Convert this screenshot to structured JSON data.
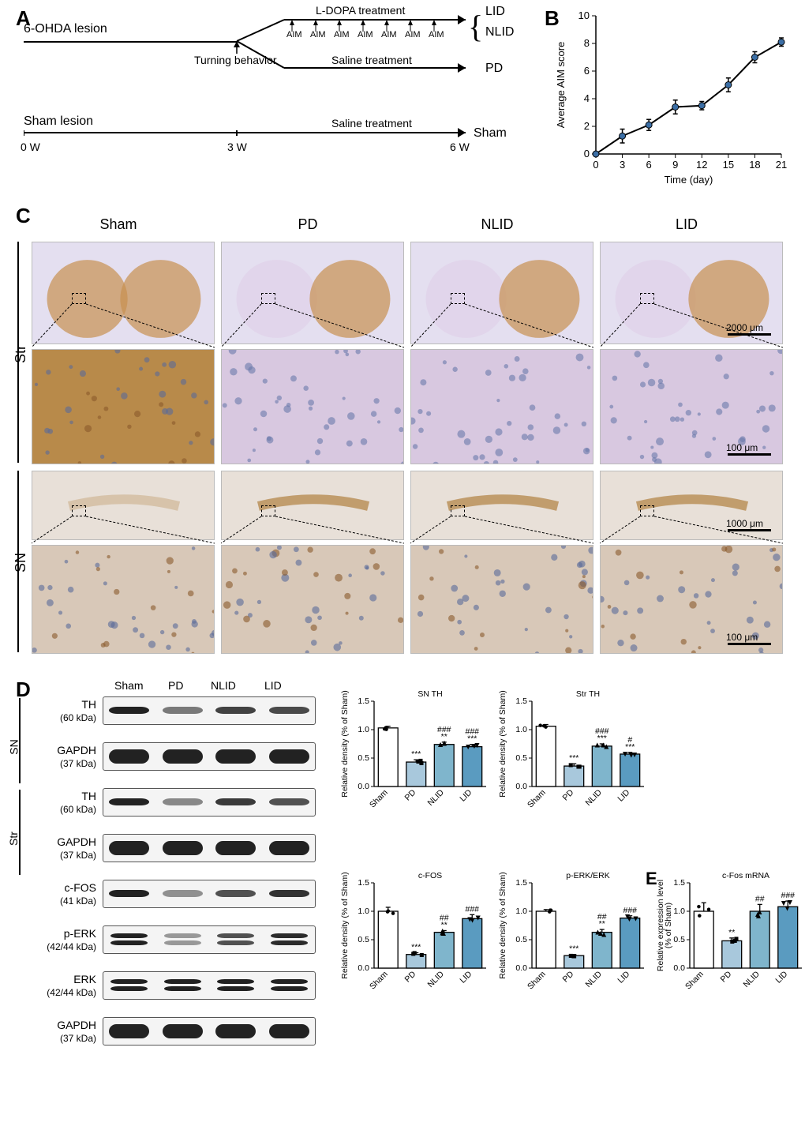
{
  "panelA": {
    "label": "A",
    "lesion_line1": "6-OHDA lesion",
    "ldopa": "L-DOPA treatment",
    "saline": "Saline treatment",
    "turning": "Turning behavior",
    "aim": "AIM",
    "sham_lesion": "Sham lesion",
    "groups": {
      "lid": "LID",
      "nlid": "NLID",
      "pd": "PD",
      "sham": "Sham"
    },
    "timepoints": {
      "w0": "0 W",
      "w3": "3 W",
      "w6": "6 W"
    }
  },
  "panelB": {
    "label": "B",
    "ylabel": "Average AIM score",
    "xlabel": "Time (day)",
    "xticks": [
      0,
      3,
      6,
      9,
      12,
      15,
      18,
      21
    ],
    "yticks": [
      0,
      2,
      4,
      6,
      8,
      10
    ],
    "points": [
      {
        "x": 0,
        "y": 0,
        "err": 0
      },
      {
        "x": 3,
        "y": 1.3,
        "err": 0.5
      },
      {
        "x": 6,
        "y": 2.1,
        "err": 0.4
      },
      {
        "x": 9,
        "y": 3.4,
        "err": 0.5
      },
      {
        "x": 12,
        "y": 3.5,
        "err": 0.3
      },
      {
        "x": 15,
        "y": 5.0,
        "err": 0.5
      },
      {
        "x": 18,
        "y": 7.0,
        "err": 0.4
      },
      {
        "x": 21,
        "y": 8.1,
        "err": 0.3
      }
    ],
    "ylim": [
      0,
      10
    ],
    "xlim": [
      0,
      21
    ],
    "line_color": "#000000",
    "marker_fill": "#3b6ea5"
  },
  "panelC": {
    "label": "C",
    "columns": [
      "Sham",
      "PD",
      "NLID",
      "LID"
    ],
    "row_labels": [
      "Str",
      "SN"
    ],
    "scales": {
      "str_top": "2000 μm",
      "str_zoom": "100 μm",
      "sn_top": "1000 μm",
      "sn_zoom": "100 μm"
    },
    "bg_colors": {
      "str_top": "#e4dff0",
      "str_zoom_sham": "#b88a4a",
      "str_zoom_other": "#d8c8e0",
      "sn_top": "#e8e0d8",
      "sn_zoom": "#d8c8b8"
    }
  },
  "panelD": {
    "label": "D",
    "lanes": [
      "Sham",
      "PD",
      "NLID",
      "LID"
    ],
    "region_labels": [
      "SN",
      "Str"
    ],
    "blots": [
      {
        "protein": "TH",
        "kda": "(60 kDa)",
        "region": "SN",
        "intensities": [
          1.0,
          0.45,
          0.8,
          0.75
        ]
      },
      {
        "protein": "GAPDH",
        "kda": "(37 kDa)",
        "region": "SN",
        "intensities": [
          1.0,
          1.0,
          1.0,
          1.0
        ],
        "thick": true
      },
      {
        "protein": "TH",
        "kda": "(60 kDa)",
        "region": "Str",
        "intensities": [
          1.0,
          0.35,
          0.85,
          0.7
        ]
      },
      {
        "protein": "GAPDH",
        "kda": "(37 kDa)",
        "region": "Str",
        "intensities": [
          1.0,
          1.0,
          1.0,
          1.0
        ],
        "thick": true
      },
      {
        "protein": "c-FOS",
        "kda": "(41 kDa)",
        "intensities": [
          1.0,
          0.3,
          0.7,
          0.9
        ]
      },
      {
        "protein": "p-ERK",
        "kda": "(42/44 kDa)",
        "intensities": [
          1.0,
          0.25,
          0.7,
          0.95
        ],
        "double": true
      },
      {
        "protein": "ERK",
        "kda": "(42/44 kDa)",
        "intensities": [
          1.0,
          1.0,
          1.0,
          1.0
        ],
        "double": true
      },
      {
        "protein": "GAPDH",
        "kda": "(37 kDa)",
        "intensities": [
          1.0,
          1.0,
          1.0,
          1.0
        ],
        "thick": true
      }
    ],
    "bar_charts": {
      "sn_th": {
        "title": "SN TH",
        "ylabel": "Relative density (% of Sham)",
        "groups": [
          "Sham",
          "PD",
          "NLID",
          "LID"
        ],
        "values": [
          1.03,
          0.43,
          0.74,
          0.7
        ],
        "errors": [
          0.03,
          0.04,
          0.04,
          0.04
        ],
        "sigs": [
          "",
          "***",
          "**\n###",
          "***\n###"
        ],
        "ylim": [
          0,
          1.5
        ],
        "yticks": [
          0,
          0.5,
          1.0,
          1.5
        ]
      },
      "str_th": {
        "title": "Str TH",
        "ylabel": "Relative density (% of Sham)",
        "groups": [
          "Sham",
          "PD",
          "NLID",
          "LID"
        ],
        "values": [
          1.06,
          0.36,
          0.71,
          0.57
        ],
        "errors": [
          0.03,
          0.04,
          0.04,
          0.03
        ],
        "sigs": [
          "",
          "***",
          "***\n###",
          "***\n#"
        ],
        "ylim": [
          0,
          1.5
        ],
        "yticks": [
          0,
          0.5,
          1.0,
          1.5
        ]
      },
      "cfos": {
        "title": "c-FOS",
        "ylabel": "Relative density (% of Sham)",
        "groups": [
          "Sham",
          "PD",
          "NLID",
          "LID"
        ],
        "values": [
          1.0,
          0.24,
          0.63,
          0.87
        ],
        "errors": [
          0.07,
          0.03,
          0.03,
          0.07
        ],
        "sigs": [
          "",
          "***",
          "**\n##",
          "###"
        ],
        "ylim": [
          0,
          1.5
        ],
        "yticks": [
          0,
          0.5,
          1.0,
          1.5
        ]
      },
      "perk": {
        "title": "p-ERK/ERK",
        "ylabel": "Relative density (% of Sham)",
        "groups": [
          "Sham",
          "PD",
          "NLID",
          "LID"
        ],
        "values": [
          1.0,
          0.22,
          0.63,
          0.88
        ],
        "errors": [
          0.03,
          0.02,
          0.05,
          0.04
        ],
        "sigs": [
          "",
          "***",
          "**\n##",
          "###"
        ],
        "ylim": [
          0,
          1.5
        ],
        "yticks": [
          0,
          0.5,
          1.0,
          1.5
        ]
      },
      "cfos_mrna": {
        "title": "c-Fos  mRNA",
        "ylabel": "Relative expression level\n(% of Sham)",
        "groups": [
          "Sham",
          "PD",
          "NLID",
          "LID"
        ],
        "values": [
          1.0,
          0.48,
          1.0,
          1.08
        ],
        "errors": [
          0.15,
          0.05,
          0.12,
          0.1
        ],
        "sigs": [
          "",
          "**",
          "##",
          "###"
        ],
        "ylim": [
          0,
          1.5
        ],
        "yticks": [
          0,
          0.5,
          1.0,
          1.5
        ]
      }
    },
    "bar_colors": [
      "#ffffff",
      "#a8c8dc",
      "#7fb5cc",
      "#5a9bc0"
    ],
    "bar_border": "#000000",
    "marker_shapes": [
      "circle",
      "square",
      "triangle",
      "triangle-down"
    ]
  },
  "panelE": {
    "label": "E"
  }
}
